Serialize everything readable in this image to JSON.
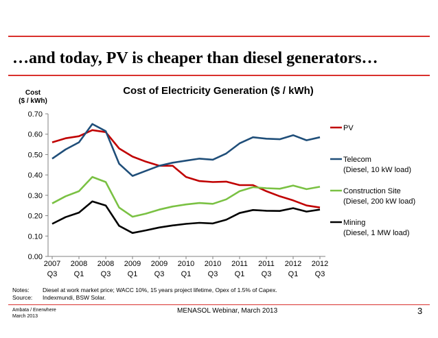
{
  "slide": {
    "title": "…and today, PV is cheaper than diesel generators…",
    "notes_label": "Notes:",
    "notes_text": "Diesel at work market price; WACC 10%, 15 years project lifetime, Opex of 1.5% of Capex.",
    "source_label": "Source:",
    "source_text": "Indexmundi,  BSW Solar.",
    "footer_company": "Ambata / Enerwhere",
    "footer_date": "March 2013",
    "footer_center": "MENASOL Webinar, March 2013",
    "page_number": "3"
  },
  "chart_data": {
    "type": "line",
    "title": "Cost of Electricity Generation ($ / kWh)",
    "ylabel": "Cost ($ / kWh)",
    "ylabel_lines": [
      "Cost",
      "($ / kWh)"
    ],
    "ylim": [
      0,
      0.7
    ],
    "y_ticks": [
      "0.00",
      "0.10",
      "0.20",
      "0.30",
      "0.40",
      "0.50",
      "0.60",
      "0.70"
    ],
    "grid": false,
    "legend_position": "right",
    "x_tick_labels": [
      [
        "2007",
        "Q3"
      ],
      [
        "2008",
        "Q1"
      ],
      [
        "2008",
        "Q3"
      ],
      [
        "2009",
        "Q1"
      ],
      [
        "2009",
        "Q3"
      ],
      [
        "2010",
        "Q1"
      ],
      [
        "2010",
        "Q3"
      ],
      [
        "2011",
        "Q1"
      ],
      [
        "2011",
        "Q3"
      ],
      [
        "2012",
        "Q1"
      ],
      [
        "2012",
        "Q3"
      ]
    ],
    "x": [
      "2007 Q3",
      "2007 Q4",
      "2008 Q1",
      "2008 Q2",
      "2008 Q3",
      "2008 Q4",
      "2009 Q1",
      "2009 Q2",
      "2009 Q3",
      "2009 Q4",
      "2010 Q1",
      "2010 Q2",
      "2010 Q3",
      "2010 Q4",
      "2011 Q1",
      "2011 Q2",
      "2011 Q3",
      "2011 Q4",
      "2012 Q1",
      "2012 Q2",
      "2012 Q3"
    ],
    "series": [
      {
        "name": "PV",
        "color": "#c00000",
        "values": [
          0.56,
          0.58,
          0.59,
          0.62,
          0.61,
          0.53,
          0.49,
          0.465,
          0.445,
          0.445,
          0.39,
          0.37,
          0.365,
          0.367,
          0.35,
          0.35,
          0.32,
          0.295,
          0.275,
          0.25,
          0.24
        ]
      },
      {
        "name": "Telecom",
        "legend_lines": [
          "Telecom",
          "(Diesel, 10 kW load)"
        ],
        "color": "#1f4e79",
        "values": [
          0.48,
          0.525,
          0.56,
          0.65,
          0.615,
          0.455,
          0.395,
          0.42,
          0.445,
          0.46,
          0.47,
          0.48,
          0.475,
          0.505,
          0.555,
          0.585,
          0.578,
          0.575,
          0.595,
          0.57,
          0.585
        ]
      },
      {
        "name": "Construction Site",
        "legend_lines": [
          "Construction Site",
          "(Diesel, 200 kW load)"
        ],
        "color": "#7ac143",
        "values": [
          0.26,
          0.295,
          0.32,
          0.39,
          0.365,
          0.24,
          0.195,
          0.21,
          0.23,
          0.245,
          0.255,
          0.262,
          0.258,
          0.28,
          0.32,
          0.34,
          0.335,
          0.332,
          0.348,
          0.33,
          0.342
        ]
      },
      {
        "name": "Mining",
        "legend_lines": [
          "Mining",
          "(Diesel, 1 MW load)"
        ],
        "color": "#000000",
        "values": [
          0.16,
          0.193,
          0.215,
          0.27,
          0.25,
          0.15,
          0.115,
          0.128,
          0.142,
          0.152,
          0.16,
          0.165,
          0.162,
          0.18,
          0.213,
          0.228,
          0.224,
          0.223,
          0.237,
          0.22,
          0.23
        ]
      }
    ]
  }
}
